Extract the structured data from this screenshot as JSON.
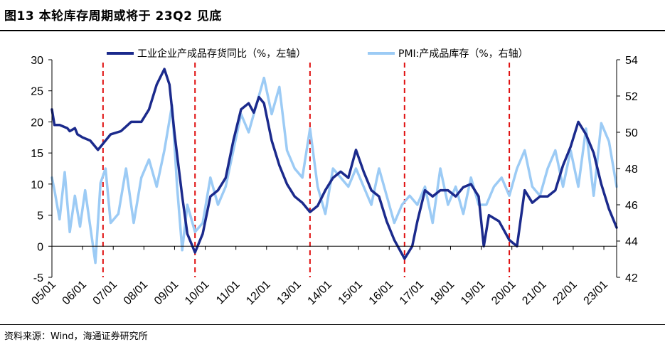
{
  "title": "图13 本轮库存周期或将于 23Q2 见底",
  "source": "资料来源：Wind，海通证券研究所",
  "colors": {
    "left_series": "#1b2a8c",
    "right_series": "#9ccbf5",
    "bottom_lines": "#e01010"
  },
  "chart_data": {
    "type": "line",
    "title": "图13 本轮库存周期或将于 23Q2 见底",
    "x_tick_labels": [
      "05/01",
      "06/01",
      "07/01",
      "08/01",
      "09/01",
      "10/01",
      "11/01",
      "12/01",
      "13/01",
      "14/01",
      "15/01",
      "16/01",
      "17/01",
      "18/01",
      "19/01",
      "20/01",
      "21/01",
      "22/01",
      "23/01"
    ],
    "x_range": [
      "2005-01",
      "2023-06"
    ],
    "y_left": {
      "ticks": [
        "-5",
        "0",
        "5",
        "10",
        "15",
        "20",
        "25",
        "30"
      ],
      "range": [
        -5,
        30
      ]
    },
    "y_right": {
      "ticks": [
        "42",
        "44",
        "46",
        "48",
        "50",
        "52",
        "54"
      ],
      "range": [
        42,
        54
      ]
    },
    "legend_position": "top-center",
    "bottom_markers": [
      "2006-09",
      "2009-09",
      "2013-06",
      "2016-07",
      "2019-12"
    ],
    "series": [
      {
        "name": "工业企业产成品存货同比（%，左轴）",
        "axis": "left",
        "points": [
          [
            "2005-01",
            22
          ],
          [
            "2005-02",
            19.5
          ],
          [
            "2005-04",
            19.5
          ],
          [
            "2005-07",
            19
          ],
          [
            "2005-08",
            18.5
          ],
          [
            "2005-10",
            19
          ],
          [
            "2005-11",
            18
          ],
          [
            "2006-01",
            17.5
          ],
          [
            "2006-04",
            17
          ],
          [
            "2006-07",
            15.5
          ],
          [
            "2006-09",
            16.5
          ],
          [
            "2006-12",
            18
          ],
          [
            "2007-04",
            18.5
          ],
          [
            "2007-08",
            20
          ],
          [
            "2007-12",
            20
          ],
          [
            "2008-03",
            22
          ],
          [
            "2008-06",
            26
          ],
          [
            "2008-09",
            28.5
          ],
          [
            "2008-11",
            26
          ],
          [
            "2009-01",
            18
          ],
          [
            "2009-04",
            8
          ],
          [
            "2009-06",
            2
          ],
          [
            "2009-09",
            -1
          ],
          [
            "2009-12",
            2
          ],
          [
            "2010-03",
            8
          ],
          [
            "2010-06",
            9
          ],
          [
            "2010-09",
            11
          ],
          [
            "2010-12",
            17
          ],
          [
            "2011-03",
            22
          ],
          [
            "2011-06",
            23
          ],
          [
            "2011-08",
            21.5
          ],
          [
            "2011-10",
            24
          ],
          [
            "2011-12",
            23
          ],
          [
            "2012-03",
            17
          ],
          [
            "2012-06",
            13
          ],
          [
            "2012-09",
            10
          ],
          [
            "2012-12",
            8
          ],
          [
            "2013-03",
            7
          ],
          [
            "2013-06",
            5.5
          ],
          [
            "2013-09",
            6.5
          ],
          [
            "2013-12",
            9
          ],
          [
            "2014-03",
            11
          ],
          [
            "2014-06",
            12
          ],
          [
            "2014-09",
            11
          ],
          [
            "2014-12",
            15.5
          ],
          [
            "2015-03",
            12
          ],
          [
            "2015-06",
            9
          ],
          [
            "2015-09",
            8
          ],
          [
            "2015-12",
            4
          ],
          [
            "2016-03",
            1
          ],
          [
            "2016-07",
            -2
          ],
          [
            "2016-10",
            0
          ],
          [
            "2016-12",
            4
          ],
          [
            "2017-03",
            9
          ],
          [
            "2017-06",
            8
          ],
          [
            "2017-09",
            9
          ],
          [
            "2017-12",
            9
          ],
          [
            "2018-03",
            8
          ],
          [
            "2018-06",
            9.5
          ],
          [
            "2018-09",
            10
          ],
          [
            "2018-12",
            8
          ],
          [
            "2019-02",
            0
          ],
          [
            "2019-04",
            5
          ],
          [
            "2019-08",
            4
          ],
          [
            "2019-12",
            1
          ],
          [
            "2020-03",
            0
          ],
          [
            "2020-06",
            9
          ],
          [
            "2020-09",
            7
          ],
          [
            "2020-12",
            8
          ],
          [
            "2021-03",
            8
          ],
          [
            "2021-06",
            9
          ],
          [
            "2021-09",
            13
          ],
          [
            "2021-12",
            16
          ],
          [
            "2022-03",
            20
          ],
          [
            "2022-06",
            18
          ],
          [
            "2022-09",
            15
          ],
          [
            "2022-12",
            10
          ],
          [
            "2023-03",
            6
          ],
          [
            "2023-06",
            3
          ]
        ]
      },
      {
        "name": "PMI:产成品库存（%，右轴）",
        "axis": "right",
        "points": [
          [
            "2005-01",
            47.5
          ],
          [
            "2005-02",
            46.8
          ],
          [
            "2005-04",
            45.2
          ],
          [
            "2005-06",
            47.8
          ],
          [
            "2005-08",
            44.5
          ],
          [
            "2005-10",
            46.5
          ],
          [
            "2005-12",
            44.8
          ],
          [
            "2006-02",
            46.8
          ],
          [
            "2006-04",
            44.8
          ],
          [
            "2006-06",
            42.8
          ],
          [
            "2006-08",
            47.2
          ],
          [
            "2006-10",
            48
          ],
          [
            "2006-12",
            45
          ],
          [
            "2007-03",
            45.5
          ],
          [
            "2007-06",
            48
          ],
          [
            "2007-09",
            45
          ],
          [
            "2007-12",
            47.5
          ],
          [
            "2008-03",
            48.5
          ],
          [
            "2008-06",
            47
          ],
          [
            "2008-09",
            49
          ],
          [
            "2008-12",
            51.5
          ],
          [
            "2009-02",
            47
          ],
          [
            "2009-04",
            43.5
          ],
          [
            "2009-06",
            46
          ],
          [
            "2009-09",
            44.5
          ],
          [
            "2009-12",
            45
          ],
          [
            "2010-03",
            47.5
          ],
          [
            "2010-06",
            46
          ],
          [
            "2010-09",
            47
          ],
          [
            "2010-12",
            49
          ],
          [
            "2011-03",
            51
          ],
          [
            "2011-06",
            50
          ],
          [
            "2011-09",
            51.5
          ],
          [
            "2011-12",
            53
          ],
          [
            "2012-03",
            51
          ],
          [
            "2012-06",
            52.5
          ],
          [
            "2012-09",
            49
          ],
          [
            "2012-12",
            48
          ],
          [
            "2013-03",
            47.5
          ],
          [
            "2013-06",
            50.2
          ],
          [
            "2013-09",
            47
          ],
          [
            "2013-12",
            45.5
          ],
          [
            "2014-03",
            48
          ],
          [
            "2014-06",
            47.5
          ],
          [
            "2014-09",
            47
          ],
          [
            "2014-12",
            48
          ],
          [
            "2015-03",
            47
          ],
          [
            "2015-06",
            46
          ],
          [
            "2015-09",
            48
          ],
          [
            "2015-12",
            46.5
          ],
          [
            "2016-03",
            45
          ],
          [
            "2016-06",
            46
          ],
          [
            "2016-09",
            46.5
          ],
          [
            "2016-12",
            46
          ],
          [
            "2017-03",
            47
          ],
          [
            "2017-06",
            45
          ],
          [
            "2017-09",
            48
          ],
          [
            "2017-12",
            46
          ],
          [
            "2018-03",
            47
          ],
          [
            "2018-06",
            45.5
          ],
          [
            "2018-09",
            47.5
          ],
          [
            "2018-12",
            46
          ],
          [
            "2019-03",
            46
          ],
          [
            "2019-06",
            47
          ],
          [
            "2019-09",
            47.5
          ],
          [
            "2019-12",
            46.5
          ],
          [
            "2020-03",
            48
          ],
          [
            "2020-06",
            49
          ],
          [
            "2020-09",
            47
          ],
          [
            "2020-12",
            46.5
          ],
          [
            "2021-03",
            48
          ],
          [
            "2021-06",
            49
          ],
          [
            "2021-09",
            47
          ],
          [
            "2021-12",
            49
          ],
          [
            "2022-03",
            47
          ],
          [
            "2022-06",
            50.2
          ],
          [
            "2022-09",
            46.5
          ],
          [
            "2022-12",
            50.5
          ],
          [
            "2023-03",
            49.5
          ],
          [
            "2023-06",
            47
          ]
        ]
      }
    ]
  }
}
